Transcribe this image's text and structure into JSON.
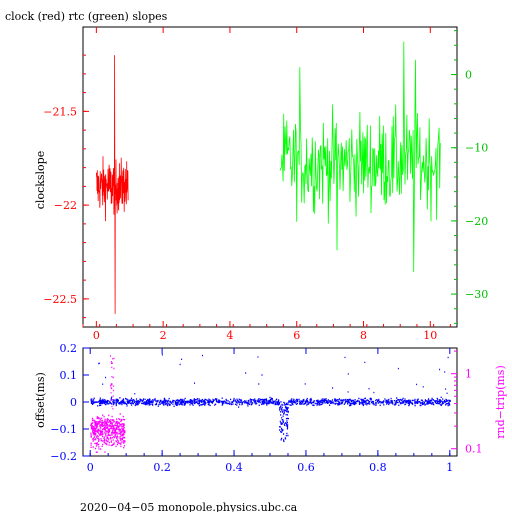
{
  "chart_data": [
    {
      "type": "line",
      "title": "clock (red) rtc (green) slopes",
      "xlabel": "",
      "ylabel": "clockslope",
      "xlim": [
        -0.4,
        10.8
      ],
      "ylim": [
        -22.65,
        -21.05
      ],
      "y2lim": [
        -34.5,
        6.5
      ],
      "xticks": [
        0,
        2,
        4,
        6,
        8,
        10
      ],
      "yticks": [
        -21.5,
        -22,
        -22.5
      ],
      "ytick_labels": [
        "−21.5",
        "−22",
        "−22.5"
      ],
      "y2ticks": [
        0,
        -10,
        -20,
        -30
      ],
      "y2tick_labels": [
        "0",
        "−10",
        "−20",
        "−30"
      ],
      "series": [
        {
          "color": "#ff0000",
          "axis": "left",
          "x_range": [
            0.0,
            0.95
          ],
          "center": -21.9,
          "spread": 0.07,
          "extremes": [
            [
              0.55,
              -21.2
            ],
            [
              0.56,
              -22.58
            ]
          ]
        },
        {
          "color": "#00ff00",
          "axis": "right",
          "x_range": [
            5.5,
            10.3
          ],
          "center": -12.0,
          "spread": 3.2,
          "extremes": [
            [
              9.2,
              -32
            ],
            [
              9.2,
              4.5
            ],
            [
              9.55,
              2.0
            ],
            [
              9.5,
              -27
            ],
            [
              6.1,
              1.0
            ],
            [
              7.2,
              -24
            ]
          ]
        }
      ]
    },
    {
      "type": "scatter",
      "xlabel": "",
      "ylabel": "offset(ms)",
      "y2label": "rnd−trip(ms)",
      "xlim": [
        -0.02,
        1.02
      ],
      "ylim": [
        -0.2,
        0.2
      ],
      "y2lim_log": [
        0.08,
        2.2
      ],
      "xticks": [
        0,
        0.2,
        0.4,
        0.6,
        0.8,
        1
      ],
      "yticks": [
        0.2,
        0.1,
        0,
        -0.1,
        -0.2
      ],
      "ytick_labels": [
        "0.2",
        "0.1",
        "0",
        "−0.1",
        "−0.2"
      ],
      "y2ticks": [
        1,
        0.1
      ],
      "y2tick_labels": [
        "1",
        "0.1"
      ],
      "series": [
        {
          "color": "#0000ff",
          "axis": "left",
          "x_range": [
            0,
            1
          ],
          "center": 0.0,
          "spread": 0.006,
          "dip": {
            "x": [
              0.525,
              0.55
            ],
            "y_min": -0.15
          }
        },
        {
          "color": "#ff00ff",
          "axis": "right",
          "x_range": [
            0,
            0.095
          ],
          "center": 0.18,
          "spread": 0.04
        }
      ]
    }
  ],
  "footer": {
    "text": "2020−04−05  monopole.physics.ubc.ca"
  },
  "colors": {
    "red": "#ff0000",
    "green": "#00ff00",
    "blue": "#0000ff",
    "magenta": "#ff00ff"
  }
}
